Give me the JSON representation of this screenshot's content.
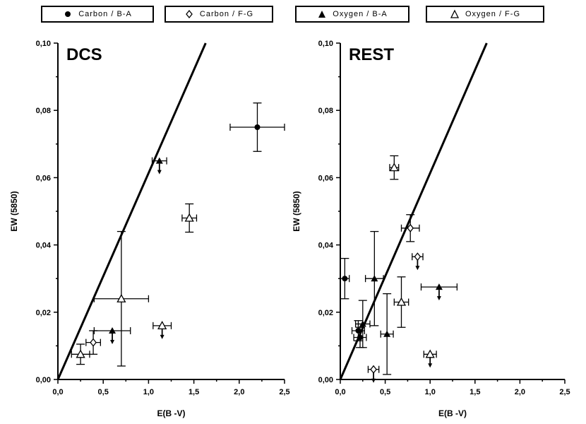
{
  "colors": {
    "ink": "#000000",
    "background": "#ffffff"
  },
  "legend": [
    {
      "marker": "filled-circle",
      "label": "Carbon / B-A"
    },
    {
      "marker": "open-diamond",
      "label": "Carbon / F-G"
    },
    {
      "marker": "filled-triangle",
      "label": "Oxygen / B-A"
    },
    {
      "marker": "open-triangle",
      "label": "Oxygen / F-G"
    }
  ],
  "chart_data": [
    {
      "type": "scatter",
      "title": "DCS",
      "xlabel": "E(B -V)",
      "ylabel": "EW (5850)",
      "xlim": [
        0,
        2.5
      ],
      "ylim": [
        0,
        0.1
      ],
      "xticks": [
        "0,0",
        "0,5",
        "1,0",
        "1,5",
        "2,0",
        "2,5"
      ],
      "yticks": [
        "0,00",
        "0,02",
        "0,04",
        "0,06",
        "0,08",
        "0,10"
      ],
      "line": {
        "x": [
          0,
          1.63
        ],
        "y": [
          0,
          0.1
        ]
      },
      "series": [
        {
          "name": "Carbon / B-A",
          "marker": "filled-circle",
          "points": [
            {
              "x": 2.2,
              "y": 0.075,
              "xerr": 0.3,
              "yerr": 0.0072
            }
          ]
        },
        {
          "name": "Carbon / F-G",
          "marker": "open-diamond",
          "points": [
            {
              "x": 0.39,
              "y": 0.011,
              "xerr": 0.08,
              "yerr": 0.0035
            }
          ]
        },
        {
          "name": "Oxygen / B-A",
          "marker": "filled-triangle",
          "points": [
            {
              "x": 1.12,
              "y": 0.065,
              "xerr": 0.08,
              "yerr": 0.0,
              "upper_limit": true
            },
            {
              "x": 0.6,
              "y": 0.0145,
              "xerr": 0.2,
              "yerr": 0.0,
              "upper_limit": true
            }
          ]
        },
        {
          "name": "Oxygen / F-G",
          "marker": "open-triangle",
          "points": [
            {
              "x": 1.45,
              "y": 0.048,
              "xerr": 0.08,
              "yerr": 0.0042
            },
            {
              "x": 0.7,
              "y": 0.024,
              "xerr": 0.3,
              "yerr": 0.02
            },
            {
              "x": 1.15,
              "y": 0.016,
              "xerr": 0.1,
              "yerr": 0.0,
              "upper_limit": true
            },
            {
              "x": 0.25,
              "y": 0.0075,
              "xerr": 0.1,
              "yerr": 0.003
            }
          ]
        }
      ]
    },
    {
      "type": "scatter",
      "title": "REST",
      "xlabel": "E(B -V)",
      "ylabel": "EW (5850)",
      "xlim": [
        0,
        2.5
      ],
      "ylim": [
        0,
        0.1
      ],
      "xticks": [
        "0,0",
        "0,5",
        "1,0",
        "1,5",
        "2,0",
        "2,5"
      ],
      "yticks": [
        "0,00",
        "0,02",
        "0,04",
        "0,06",
        "0,08",
        "0,10"
      ],
      "line": {
        "x": [
          0,
          1.63
        ],
        "y": [
          0,
          0.1
        ]
      },
      "series": [
        {
          "name": "Carbon / B-A",
          "marker": "filled-circle",
          "points": [
            {
              "x": 0.05,
              "y": 0.03,
              "xerr": 0.05,
              "yerr": 0.006
            },
            {
              "x": 0.2,
              "y": 0.0145,
              "xerr": 0.07,
              "yerr": 0.003
            },
            {
              "x": 0.22,
              "y": 0.0125,
              "xerr": 0.07,
              "yerr": 0.003
            }
          ]
        },
        {
          "name": "Carbon / F-G",
          "marker": "open-diamond",
          "points": [
            {
              "x": 0.78,
              "y": 0.045,
              "xerr": 0.1,
              "yerr": 0.004
            },
            {
              "x": 0.86,
              "y": 0.0365,
              "xerr": 0.06,
              "yerr": 0.0,
              "upper_limit": true
            },
            {
              "x": 0.37,
              "y": 0.003,
              "xerr": 0.06,
              "yerr": 0.0,
              "upper_limit": true
            }
          ]
        },
        {
          "name": "Oxygen / B-A",
          "marker": "filled-triangle",
          "points": [
            {
              "x": 0.38,
              "y": 0.03,
              "xerr": 0.1,
              "yerr": 0.014
            },
            {
              "x": 0.25,
              "y": 0.0165,
              "xerr": 0.08,
              "yerr": 0.007
            },
            {
              "x": 0.52,
              "y": 0.0135,
              "xerr": 0.07,
              "yerr": 0.012
            },
            {
              "x": 1.1,
              "y": 0.0275,
              "xerr": 0.2,
              "yerr": 0.0,
              "upper_limit": true
            }
          ]
        },
        {
          "name": "Oxygen / F-G",
          "marker": "open-triangle",
          "points": [
            {
              "x": 0.6,
              "y": 0.063,
              "xerr": 0.05,
              "yerr": 0.0035
            },
            {
              "x": 0.68,
              "y": 0.023,
              "xerr": 0.08,
              "yerr": 0.0075
            },
            {
              "x": 1.0,
              "y": 0.0075,
              "xerr": 0.07,
              "yerr": 0.0,
              "upper_limit": true
            }
          ]
        }
      ]
    }
  ]
}
